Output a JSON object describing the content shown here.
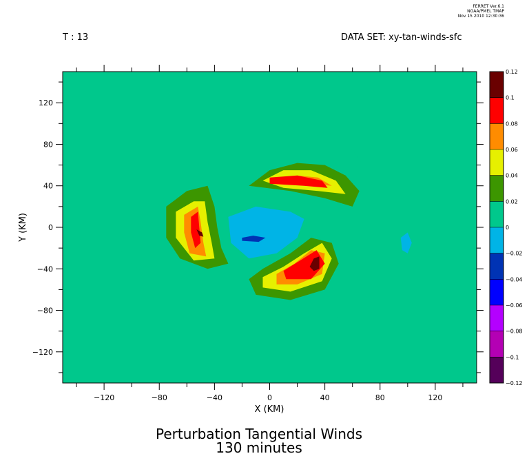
{
  "header": {
    "ferret_lines": [
      "FERRET Ver.6.1",
      "NOAA/PMEL TMAP",
      "Nov 15 2010 12:30:36"
    ],
    "time_label": "T : 13",
    "dataset_label": "DATA SET: xy-tan-winds-sfc"
  },
  "footer": {
    "title_line1": "Perturbation Tangential Winds",
    "title_line2": "130 minutes"
  },
  "chart_data": {
    "type": "heatmap",
    "xlabel": "X (KM)",
    "ylabel": "Y (KM)",
    "xlim": [
      -150,
      150
    ],
    "ylim": [
      -150,
      150
    ],
    "xticks": [
      -120,
      -80,
      -40,
      0,
      40,
      80,
      120
    ],
    "yticks": [
      120,
      80,
      40,
      0,
      -40,
      -80,
      -120
    ],
    "grid": false,
    "colorbar": {
      "levels": [
        "0.12",
        "0.1",
        "0.08",
        "0.06",
        "0.04",
        "0.02",
        "0",
        "-0.02",
        "-0.04",
        "-0.06",
        "-0.08",
        "-0.1",
        "-0.12"
      ],
      "colors": [
        "#6a0000",
        "#ff0000",
        "#ff8c00",
        "#e6f000",
        "#3c9600",
        "#00c88c",
        "#00b4e6",
        "#0033b4",
        "#0000ff",
        "#b400ff",
        "#b400b4",
        "#55005a"
      ]
    },
    "regions": [
      {
        "level": "0.02",
        "polygon": [
          [
            -110,
            10
          ],
          [
            -100,
            20
          ],
          [
            -80,
            25
          ],
          [
            -60,
            40
          ],
          [
            -40,
            50
          ],
          [
            -20,
            55
          ],
          [
            0,
            70
          ],
          [
            20,
            85
          ],
          [
            40,
            90
          ],
          [
            60,
            75
          ],
          [
            70,
            55
          ],
          [
            75,
            30
          ],
          [
            80,
            0
          ],
          [
            80,
            -30
          ],
          [
            75,
            -60
          ],
          [
            65,
            -75
          ],
          [
            45,
            -90
          ],
          [
            25,
            -105
          ],
          [
            -5,
            -95
          ],
          [
            -25,
            -80
          ],
          [
            -55,
            -65
          ],
          [
            -85,
            -50
          ],
          [
            -105,
            -30
          ],
          [
            -112,
            -10
          ]
        ]
      },
      {
        "level": "0.04",
        "polygon": [
          [
            -75,
            20
          ],
          [
            -60,
            35
          ],
          [
            -45,
            40
          ],
          [
            -40,
            20
          ],
          [
            -38,
            0
          ],
          [
            -35,
            -20
          ],
          [
            -30,
            -35
          ],
          [
            -45,
            -40
          ],
          [
            -65,
            -30
          ],
          [
            -75,
            -10
          ]
        ]
      },
      {
        "level": "0.04",
        "polygon": [
          [
            -15,
            40
          ],
          [
            0,
            55
          ],
          [
            20,
            62
          ],
          [
            40,
            60
          ],
          [
            55,
            50
          ],
          [
            65,
            35
          ],
          [
            60,
            20
          ],
          [
            40,
            28
          ],
          [
            15,
            35
          ]
        ]
      },
      {
        "level": "0.04",
        "polygon": [
          [
            -15,
            -50
          ],
          [
            -5,
            -40
          ],
          [
            15,
            -25
          ],
          [
            30,
            -10
          ],
          [
            45,
            -15
          ],
          [
            50,
            -35
          ],
          [
            40,
            -60
          ],
          [
            15,
            -70
          ],
          [
            -10,
            -65
          ]
        ]
      },
      {
        "level": "0.06",
        "polygon": [
          [
            -68,
            15
          ],
          [
            -55,
            25
          ],
          [
            -47,
            25
          ],
          [
            -45,
            5
          ],
          [
            -42,
            -15
          ],
          [
            -40,
            -30
          ],
          [
            -55,
            -32
          ],
          [
            -68,
            -10
          ]
        ]
      },
      {
        "level": "0.06",
        "polygon": [
          [
            -5,
            45
          ],
          [
            10,
            55
          ],
          [
            30,
            55
          ],
          [
            48,
            45
          ],
          [
            55,
            32
          ],
          [
            35,
            35
          ],
          [
            10,
            38
          ]
        ]
      },
      {
        "level": "0.06",
        "polygon": [
          [
            -5,
            -48
          ],
          [
            10,
            -38
          ],
          [
            25,
            -25
          ],
          [
            38,
            -15
          ],
          [
            45,
            -30
          ],
          [
            38,
            -52
          ],
          [
            15,
            -62
          ],
          [
            -5,
            -58
          ]
        ]
      },
      {
        "level": "0.08",
        "polygon": [
          [
            -62,
            12
          ],
          [
            -52,
            20
          ],
          [
            -50,
            5
          ],
          [
            -48,
            -15
          ],
          [
            -46,
            -28
          ],
          [
            -58,
            -25
          ],
          [
            -62,
            -5
          ]
        ]
      },
      {
        "level": "0.08",
        "polygon": [
          [
            5,
            46
          ],
          [
            20,
            50
          ],
          [
            35,
            48
          ],
          [
            45,
            40
          ],
          [
            30,
            42
          ],
          [
            10,
            42
          ]
        ]
      },
      {
        "level": "0.08",
        "polygon": [
          [
            5,
            -45
          ],
          [
            18,
            -35
          ],
          [
            30,
            -22
          ],
          [
            40,
            -25
          ],
          [
            38,
            -45
          ],
          [
            20,
            -55
          ],
          [
            5,
            -55
          ]
        ]
      },
      {
        "level": "0.1",
        "polygon": [
          [
            -57,
            10
          ],
          [
            -52,
            15
          ],
          [
            -51,
            0
          ],
          [
            -50,
            -15
          ],
          [
            -54,
            -20
          ],
          [
            -57,
            -5
          ]
        ]
      },
      {
        "level": "0.1",
        "polygon": [
          [
            0,
            48
          ],
          [
            20,
            50
          ],
          [
            38,
            45
          ],
          [
            42,
            38
          ],
          [
            25,
            40
          ],
          [
            0,
            42
          ]
        ]
      },
      {
        "level": "0.1",
        "polygon": [
          [
            10,
            -42
          ],
          [
            22,
            -32
          ],
          [
            34,
            -22
          ],
          [
            40,
            -35
          ],
          [
            30,
            -50
          ],
          [
            12,
            -50
          ]
        ]
      },
      {
        "level": "0.12",
        "polygon": [
          [
            -53,
            -2
          ],
          [
            -49,
            -5
          ],
          [
            -48,
            -9
          ],
          [
            -51,
            -8
          ]
        ]
      },
      {
        "level": "0.12",
        "polygon": [
          [
            32,
            -30
          ],
          [
            36,
            -28
          ],
          [
            36,
            -40
          ],
          [
            32,
            -42
          ],
          [
            29,
            -38
          ]
        ]
      },
      {
        "level": "0",
        "polygon": [
          [
            -30,
            10
          ],
          [
            -10,
            20
          ],
          [
            15,
            15
          ],
          [
            25,
            8
          ],
          [
            20,
            -10
          ],
          [
            5,
            -25
          ],
          [
            -15,
            -30
          ],
          [
            -28,
            -15
          ]
        ]
      },
      {
        "level": "0",
        "polygon": [
          [
            95,
            -10
          ],
          [
            100,
            -5
          ],
          [
            103,
            -15
          ],
          [
            100,
            -25
          ],
          [
            96,
            -22
          ]
        ]
      },
      {
        "level": "-0.02",
        "polygon": [
          [
            -20,
            -10
          ],
          [
            -12,
            -8
          ],
          [
            -3,
            -10
          ],
          [
            -8,
            -14
          ],
          [
            -20,
            -13
          ]
        ]
      }
    ]
  }
}
